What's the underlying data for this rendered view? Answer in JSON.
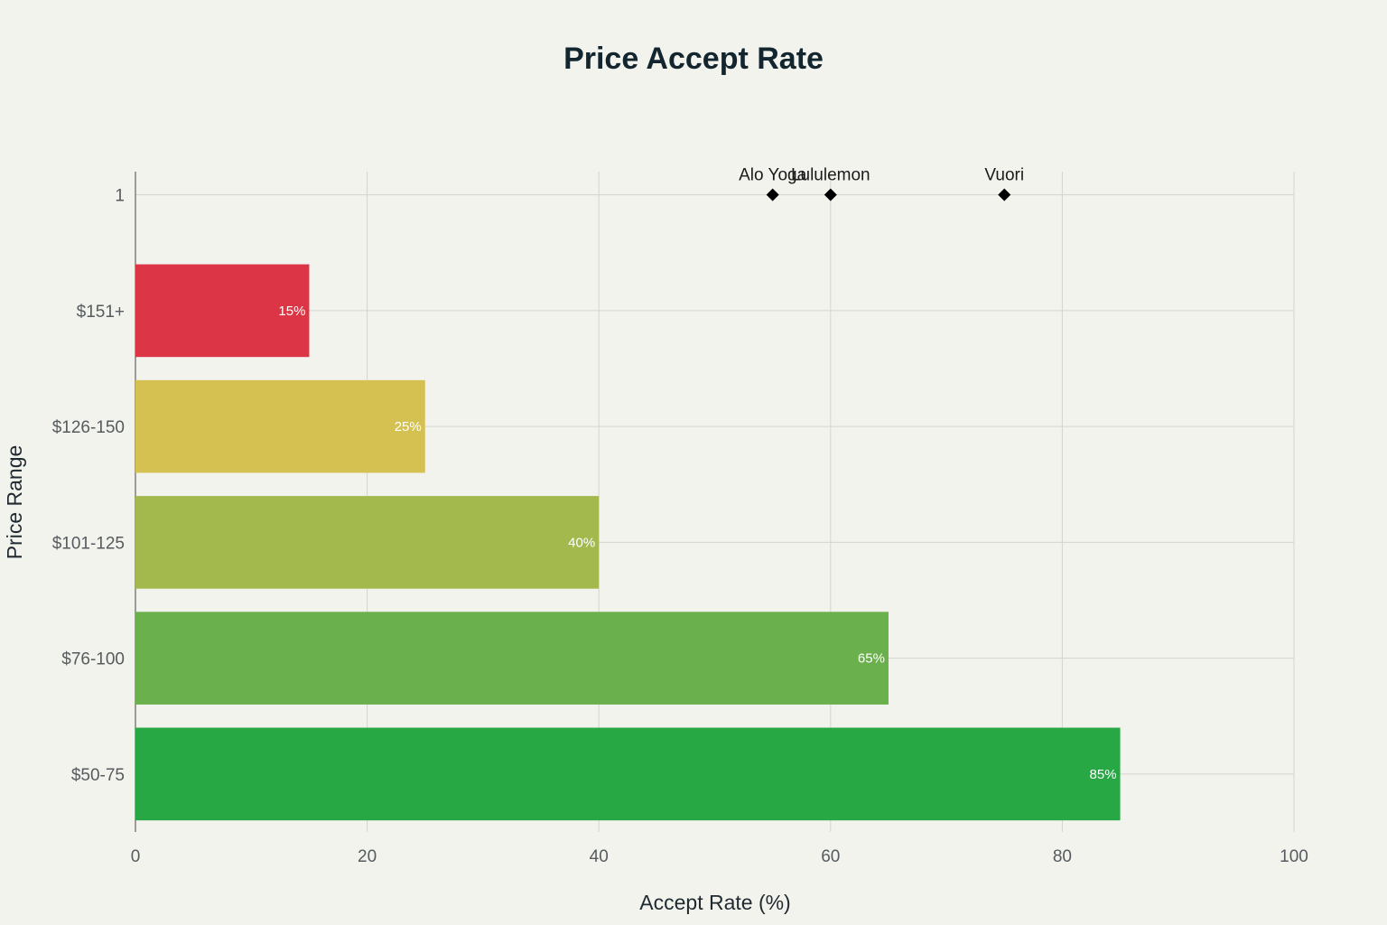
{
  "chart_data": {
    "type": "bar",
    "orientation": "horizontal",
    "title": "Price Accept Rate",
    "xlabel": "Accept Rate (%)",
    "ylabel": "Price Range",
    "xlim": [
      0,
      100
    ],
    "xticks": [
      0,
      20,
      40,
      60,
      80,
      100
    ],
    "grid": true,
    "categories": [
      "$50-75",
      "$76-100",
      "$101-125",
      "$126-150",
      "$151+"
    ],
    "values": [
      85,
      65,
      40,
      25,
      15
    ],
    "value_labels": [
      "85%",
      "65%",
      "40%",
      "25%",
      "15%"
    ],
    "bar_colors": [
      "#28a745",
      "#6ab04c",
      "#a3b94e",
      "#d4c152",
      "#dc3545"
    ],
    "marker_row_label": "1",
    "markers": [
      {
        "label": "Alo Yoga",
        "x": 55
      },
      {
        "label": "Lululemon",
        "x": 60
      },
      {
        "label": "Vuori",
        "x": 75
      }
    ],
    "marker_color": "#000000"
  }
}
